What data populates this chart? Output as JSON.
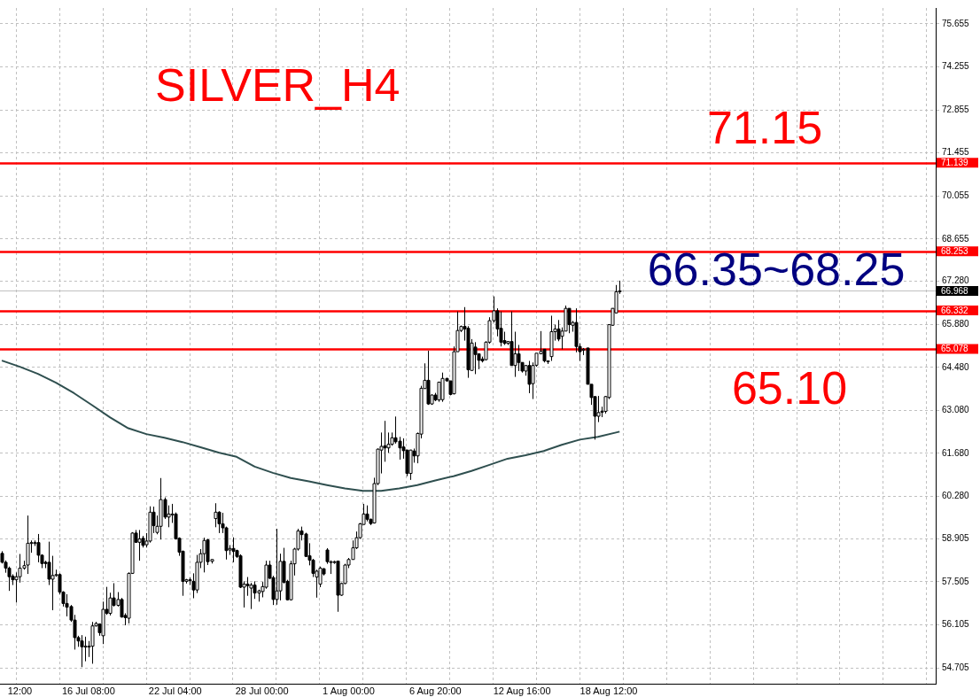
{
  "chart_data": {
    "type": "candlestick",
    "title": "SILVER_H4",
    "color": "#000000",
    "grid": true,
    "annotations": [
      "71.15",
      "66.35~68.25",
      "65.10"
    ],
    "categories": [
      null,
      null,
      null,
      null,
      null,
      "12:00",
      null,
      null,
      null,
      null,
      null,
      null,
      null,
      null,
      null,
      null,
      null,
      null,
      null,
      null,
      null,
      null,
      null,
      null,
      "16 Jul 08:00",
      null,
      null,
      null,
      null,
      null,
      null,
      null,
      null,
      null,
      null,
      null,
      null,
      null,
      null,
      null,
      null,
      null,
      null,
      null,
      null,
      null,
      null,
      null,
      "22 Jul 04:00",
      null,
      null,
      null,
      null,
      null,
      null,
      null,
      null,
      null,
      null,
      null,
      null,
      null,
      null,
      null,
      null,
      null,
      null,
      null,
      null,
      null,
      null,
      null,
      "28 Jul 00:00",
      null,
      null,
      null,
      null,
      null,
      null,
      null,
      null,
      null,
      null,
      null,
      null,
      null,
      null,
      null,
      null,
      null,
      null,
      null,
      null,
      null,
      null,
      null,
      "1 Aug 00:00",
      null,
      null,
      null,
      null,
      null,
      null,
      null,
      null,
      null,
      null,
      null,
      null,
      null,
      null,
      null,
      null,
      null,
      null,
      null,
      null,
      null,
      null,
      null,
      "6 Aug 20:00",
      null,
      null,
      null,
      null,
      null,
      null,
      null,
      null,
      null,
      null,
      null,
      null,
      null,
      null,
      null,
      null,
      null,
      null,
      null,
      null,
      null,
      null,
      null,
      "12 Aug 16:00",
      null,
      null,
      null,
      null,
      null,
      null,
      null,
      null,
      null,
      null,
      null,
      null,
      null,
      null,
      null,
      null,
      null,
      null,
      null,
      null,
      null,
      null,
      null,
      "18 Aug 12:00",
      null,
      null,
      null,
      null,
      null,
      null,
      null,
      null,
      null,
      null,
      null,
      null,
      null,
      null,
      null,
      null,
      null,
      null,
      null,
      null,
      null,
      null,
      null,
      null,
      null,
      null,
      null,
      null,
      null,
      null,
      null,
      null,
      null,
      null,
      null,
      null,
      null,
      null,
      null,
      null,
      null,
      null,
      null,
      null,
      null,
      null,
      null,
      null,
      null,
      null,
      null,
      null,
      null,
      null,
      null,
      null,
      null,
      null,
      null,
      null,
      null,
      null,
      null,
      null,
      null,
      null,
      null,
      null,
      null,
      null,
      null,
      null,
      null,
      null,
      null,
      null,
      null,
      null,
      null,
      null,
      null,
      null,
      null,
      null,
      null,
      null,
      null,
      null,
      null,
      null
    ],
    "colors": [
      "#000000",
      "#000000",
      "#000000",
      "#000000",
      "#ffffff",
      "#ffffff",
      "#ffffff",
      "#ffffff",
      "#ffffff",
      "#ffffff",
      "#000000",
      "#000000",
      "#000000",
      "#000000",
      "#ffffff",
      "#ffffff",
      "#000000",
      "#000000",
      "#000000",
      "#000000",
      "#000000",
      "#000000",
      "#000000",
      "#ffffff",
      "#ffffff",
      "#ffffff",
      "#ffffff",
      "#000000",
      "#ffffff",
      "#000000",
      "#ffffff",
      "#000000",
      "#ffffff",
      "#000000",
      "#000000",
      "#ffffff",
      "#ffffff",
      "#000000",
      "#ffffff",
      "#000000",
      "#ffffff",
      "#ffffff",
      "#000000",
      "#ffffff",
      "#ffffff",
      "#000000",
      "#ffffff",
      "#ffffff",
      "#000000",
      "#000000",
      "#000000",
      "#ffffff",
      "#000000",
      "#000000",
      "#ffffff",
      "#ffffff",
      "#ffffff",
      "#000000",
      "#ffffff",
      "#ffffff",
      "#000000",
      "#000000",
      "#000000",
      "#ffffff",
      "#000000",
      "#000000",
      "#000000",
      "#ffffff",
      "#000000",
      "#ffffff",
      "#000000",
      "#ffffff",
      "#ffffff",
      "#ffffff",
      "#000000",
      "#000000",
      "#ffffff",
      "#ffffff",
      "#000000",
      "#000000",
      "#ffffff",
      "#ffffff",
      "#ffffff",
      "#000000",
      "#000000",
      "#000000",
      "#000000",
      "#ffffff",
      "#ffffff",
      "#000000",
      "#000000",
      "#ffffff",
      "#ffffff",
      "#000000",
      "#ffffff",
      "#ffffff",
      "#ffffff",
      "#ffffff",
      "#ffffff",
      "#ffffff",
      "#ffffff",
      "#000000",
      "#000000",
      "#ffffff",
      "#ffffff",
      "#ffffff",
      "#000000",
      "#ffffff",
      "#ffffff",
      "#000000",
      "#000000",
      "#000000",
      "#000000",
      "#ffffff",
      "#000000",
      "#ffffff",
      "#ffffff",
      "#ffffff",
      "#000000",
      "#ffffff",
      "#000000",
      "#ffffff",
      "#ffffff",
      "#000000",
      "#000000",
      "#ffffff",
      "#ffffff",
      "#ffffff",
      "#000000",
      "#000000",
      "#ffffff",
      "#000000",
      "#000000",
      "#000000",
      "#ffffff",
      "#ffffff",
      "#ffffff",
      "#000000",
      "#000000",
      "#000000",
      "#ffffff",
      "#000000",
      "#ffffff",
      "#000000",
      "#000000",
      "#ffffff",
      "#000000",
      "#ffffff",
      "#ffffff",
      "#ffffff",
      "#000000",
      "#000000",
      "#ffffff",
      "#ffffff",
      "#000000",
      "#ffffff",
      "#ffffff",
      "#000000",
      "#ffffff",
      "#000000",
      "#000000",
      "#ffffff",
      "#000000",
      "#000000",
      "#000000",
      "#ffffff",
      "#ffffff",
      "#ffffff",
      "#ffffff",
      "#ffffff",
      "#ffffff",
      "#ffffff",
      null,
      null,
      null,
      null,
      null,
      null,
      null,
      null,
      null,
      null,
      null,
      null,
      null,
      null,
      null,
      null,
      null,
      null,
      null,
      null,
      null,
      null,
      null,
      null,
      null,
      null,
      null,
      null,
      null,
      null,
      null,
      null,
      null,
      null,
      null,
      null,
      null,
      null,
      null,
      null,
      null,
      null,
      null,
      null,
      null,
      null,
      null,
      null,
      null,
      null,
      null,
      null,
      null,
      null,
      null,
      null,
      null,
      null,
      null,
      null,
      null,
      null,
      null,
      null,
      null,
      null,
      null,
      null,
      null,
      null,
      null,
      null,
      null,
      null,
      null,
      null,
      null,
      null,
      null,
      null,
      null,
      null,
      null,
      null,
      null,
      null,
      null
    ],
    "ohlc": [
      [
        58.43,
        58.5,
        58.1,
        58.14
      ],
      [
        58.14,
        58.2,
        57.8,
        57.95
      ],
      [
        57.95,
        58.0,
        57.21,
        57.67
      ],
      [
        57.69,
        57.75,
        57.4,
        57.57
      ],
      [
        57.57,
        57.81,
        56.83,
        57.67
      ],
      [
        57.67,
        58.41,
        57.48,
        57.95
      ],
      [
        57.95,
        58.19,
        57.9,
        58.03
      ],
      [
        58.05,
        59.66,
        57.76,
        58.76
      ],
      [
        58.76,
        58.85,
        58.45,
        58.78
      ],
      [
        58.78,
        58.85,
        58.67,
        58.78
      ],
      [
        58.78,
        59.06,
        58.14,
        58.37
      ],
      [
        58.37,
        58.4,
        57.95,
        58.1
      ],
      [
        58.14,
        58.19,
        57.95,
        58.1
      ],
      [
        58.14,
        58.81,
        57.4,
        57.59
      ],
      [
        57.59,
        58.35,
        56.58,
        57.71
      ],
      [
        57.71,
        57.9,
        57.67,
        57.74
      ],
      [
        57.74,
        57.78,
        57.1,
        57.17
      ],
      [
        57.17,
        57.2,
        56.7,
        56.8
      ],
      [
        56.8,
        57.1,
        56.38,
        56.68
      ],
      [
        56.7,
        56.75,
        56.2,
        56.26
      ],
      [
        56.26,
        56.43,
        55.3,
        55.69
      ],
      [
        55.69,
        55.75,
        55.39,
        55.58
      ],
      [
        55.58,
        55.77,
        54.73,
        55.39
      ],
      [
        55.39,
        55.72,
        54.92,
        55.41
      ],
      [
        55.41,
        55.58,
        55.06,
        55.41
      ],
      [
        55.41,
        56.2,
        54.84,
        56.07
      ],
      [
        56.07,
        56.2,
        56.05,
        56.15
      ],
      [
        56.13,
        56.15,
        55.75,
        55.85
      ],
      [
        55.75,
        56.86,
        55.48,
        56.61
      ],
      [
        56.61,
        57.34,
        56.43,
        56.48
      ],
      [
        56.48,
        57.15,
        56.41,
        56.98
      ],
      [
        56.98,
        57.46,
        56.7,
        56.74
      ],
      [
        56.74,
        57.17,
        56.7,
        56.93
      ],
      [
        56.93,
        56.98,
        56.34,
        56.36
      ],
      [
        56.41,
        56.48,
        56.09,
        56.34
      ],
      [
        56.32,
        57.81,
        56.15,
        57.78
      ],
      [
        57.78,
        59.12,
        57.76,
        59.09
      ],
      [
        59.09,
        59.19,
        58.77,
        58.79
      ],
      [
        58.79,
        59.19,
        58.19,
        58.9
      ],
      [
        58.92,
        59.0,
        58.62,
        58.69
      ],
      [
        58.71,
        59.09,
        58.62,
        58.83
      ],
      [
        58.83,
        59.96,
        58.78,
        59.77
      ],
      [
        59.77,
        59.95,
        59.09,
        59.33
      ],
      [
        59.11,
        59.66,
        59.05,
        59.31
      ],
      [
        59.31,
        60.88,
        58.88,
        60.18
      ],
      [
        60.18,
        60.25,
        59.55,
        59.61
      ],
      [
        59.61,
        59.99,
        59.28,
        59.71
      ],
      [
        59.71,
        60.04,
        59.42,
        59.71
      ],
      [
        59.71,
        59.76,
        58.88,
        58.9
      ],
      [
        58.92,
        58.95,
        58.35,
        58.47
      ],
      [
        58.5,
        58.52,
        57.05,
        57.52
      ],
      [
        57.52,
        57.6,
        57.45,
        57.57
      ],
      [
        57.57,
        57.64,
        57.4,
        57.55
      ],
      [
        57.52,
        57.78,
        56.97,
        57.24
      ],
      [
        57.24,
        58.38,
        57.14,
        58.14
      ],
      [
        58.14,
        58.57,
        57.95,
        58.42
      ],
      [
        58.42,
        58.94,
        57.81,
        58.85
      ],
      [
        58.87,
        58.9,
        58.05,
        58.16
      ],
      [
        58.17,
        58.23,
        58.1,
        58.23
      ],
      [
        59.56,
        60.06,
        59.28,
        59.77
      ],
      [
        59.77,
        59.8,
        59.09,
        59.39
      ],
      [
        59.39,
        59.75,
        59.09,
        59.26
      ],
      [
        59.26,
        59.3,
        58.23,
        58.52
      ],
      [
        58.54,
        58.7,
        58.38,
        58.59
      ],
      [
        58.59,
        58.95,
        58.14,
        58.5
      ],
      [
        58.52,
        58.55,
        58.28,
        58.33
      ],
      [
        58.35,
        58.4,
        57.3,
        57.33
      ],
      [
        57.33,
        57.52,
        56.67,
        57.43
      ],
      [
        57.43,
        57.66,
        57.05,
        57.38
      ],
      [
        57.3,
        57.47,
        56.62,
        57.4
      ],
      [
        57.4,
        57.52,
        56.95,
        57.14
      ],
      [
        57.14,
        57.25,
        56.86,
        57.21
      ],
      [
        57.19,
        57.5,
        57.0,
        57.35
      ],
      [
        57.33,
        58.19,
        57.28,
        58.05
      ],
      [
        58.05,
        58.19,
        57.6,
        57.62
      ],
      [
        57.64,
        57.7,
        56.75,
        56.93
      ],
      [
        56.93,
        59.23,
        56.76,
        57.21
      ],
      [
        57.21,
        58.42,
        56.9,
        58.17
      ],
      [
        58.17,
        58.61,
        57.45,
        57.49
      ],
      [
        57.52,
        57.57,
        56.9,
        56.92
      ],
      [
        56.92,
        58.19,
        56.9,
        58.09
      ],
      [
        58.09,
        58.61,
        57.71,
        58.57
      ],
      [
        58.57,
        59.23,
        58.52,
        59.16
      ],
      [
        59.16,
        59.3,
        58.85,
        59.04
      ],
      [
        59.06,
        59.1,
        58.33,
        58.33
      ],
      [
        58.35,
        58.76,
        58.04,
        58.21
      ],
      [
        58.21,
        58.25,
        57.66,
        57.78
      ],
      [
        57.66,
        57.9,
        56.99,
        57.85
      ],
      [
        57.43,
        58.0,
        57.33,
        57.95
      ],
      [
        57.93,
        57.95,
        57.71,
        57.76
      ],
      [
        58.54,
        58.6,
        58.09,
        58.16
      ],
      [
        58.16,
        58.2,
        57.76,
        58.16
      ],
      [
        58.16,
        58.19,
        58.09,
        58.16
      ],
      [
        58.18,
        58.19,
        56.53,
        57.07
      ],
      [
        57.07,
        57.48,
        57.05,
        57.45
      ],
      [
        57.45,
        58.09,
        57.43,
        58.05
      ],
      [
        58.05,
        58.28,
        57.95,
        58.23
      ],
      [
        58.23,
        58.85,
        58.23,
        58.61
      ],
      [
        58.61,
        59.14,
        58.57,
        58.94
      ],
      [
        58.94,
        59.42,
        58.9,
        59.39
      ],
      [
        59.37,
        60.04,
        59.37,
        59.71
      ],
      [
        59.71,
        59.99,
        59.47,
        59.54
      ],
      [
        59.54,
        59.56,
        59.35,
        59.4
      ],
      [
        59.42,
        60.89,
        59.4,
        60.7
      ],
      [
        60.7,
        61.84,
        60.65,
        61.82
      ],
      [
        61.79,
        62.36,
        61.03,
        61.91
      ],
      [
        61.93,
        62.74,
        61.41,
        61.86
      ],
      [
        61.86,
        62.36,
        61.7,
        61.98
      ],
      [
        61.98,
        62.36,
        61.93,
        62.19
      ],
      [
        62.19,
        62.88,
        62.0,
        62.06
      ],
      [
        62.08,
        62.22,
        61.48,
        61.86
      ],
      [
        61.89,
        62.17,
        61.51,
        61.77
      ],
      [
        61.79,
        61.8,
        60.94,
        61.03
      ],
      [
        61.03,
        61.8,
        60.82,
        61.79
      ],
      [
        61.76,
        61.84,
        61.38,
        61.6
      ],
      [
        61.6,
        62.36,
        61.36,
        62.33
      ],
      [
        62.31,
        63.88,
        62.17,
        63.8
      ],
      [
        63.79,
        64.61,
        63.79,
        64.06
      ],
      [
        64.06,
        65.02,
        63.26,
        63.29
      ],
      [
        63.29,
        63.6,
        63.26,
        63.58
      ],
      [
        63.58,
        63.65,
        63.38,
        63.42
      ],
      [
        63.42,
        64.0,
        63.36,
        64.0
      ],
      [
        63.43,
        64.31,
        63.36,
        64.12
      ],
      [
        64.12,
        64.14,
        64.02,
        64.04
      ],
      [
        64.04,
        64.04,
        63.57,
        63.6
      ],
      [
        63.62,
        65.16,
        63.6,
        64.99
      ],
      [
        64.99,
        66.3,
        64.99,
        65.68
      ],
      [
        65.68,
        65.84,
        65.63,
        65.81
      ],
      [
        65.81,
        66.44,
        65.35,
        65.73
      ],
      [
        65.75,
        65.82,
        64.14,
        64.4
      ],
      [
        64.38,
        65.4,
        64.38,
        65.27
      ],
      [
        65.14,
        65.3,
        64.26,
        64.9
      ],
      [
        64.92,
        64.92,
        64.42,
        64.71
      ],
      [
        64.75,
        64.83,
        64.64,
        64.69
      ],
      [
        64.73,
        65.33,
        64.71,
        65.3
      ],
      [
        65.3,
        66.11,
        65.25,
        66.0
      ],
      [
        66.0,
        66.79,
        65.94,
        66.32
      ],
      [
        66.32,
        66.4,
        65.49,
        65.73
      ],
      [
        65.75,
        66.3,
        65.16,
        65.3
      ],
      [
        65.35,
        65.64,
        65.21,
        65.26
      ],
      [
        65.26,
        65.32,
        65.21,
        65.32
      ],
      [
        65.32,
        66.3,
        64.54,
        64.54
      ],
      [
        64.54,
        65.64,
        64.17,
        64.92
      ],
      [
        64.92,
        65.21,
        64.36,
        64.64
      ],
      [
        64.64,
        64.64,
        64.31,
        64.36
      ],
      [
        64.36,
        64.54,
        64.21,
        64.54
      ],
      [
        64.54,
        64.69,
        63.64,
        63.93
      ],
      [
        63.95,
        64.64,
        63.45,
        64.54
      ],
      [
        64.55,
        64.94,
        64.5,
        64.94
      ],
      [
        64.92,
        65.66,
        64.92,
        65.0
      ],
      [
        65.07,
        65.07,
        64.64,
        64.69
      ],
      [
        64.69,
        64.69,
        64.59,
        64.67
      ],
      [
        64.83,
        66.16,
        64.69,
        65.64
      ],
      [
        65.64,
        65.87,
        65.35,
        65.73
      ],
      [
        65.73,
        66.02,
        65.33,
        65.4
      ],
      [
        65.49,
        65.78,
        65.07,
        65.66
      ],
      [
        65.66,
        66.49,
        65.66,
        66.4
      ],
      [
        66.4,
        66.4,
        65.59,
        65.87
      ],
      [
        65.85,
        65.99,
        65.64,
        65.94
      ],
      [
        65.94,
        66.4,
        64.97,
        65.16
      ],
      [
        65.16,
        65.26,
        64.69,
        64.99
      ],
      [
        65.07,
        65.11,
        64.88,
        65.07
      ],
      [
        65.11,
        65.11,
        63.93,
        63.93
      ],
      [
        63.93,
        63.93,
        63.26,
        63.5
      ],
      [
        63.53,
        63.53,
        62.13,
        62.89
      ],
      [
        62.89,
        63.55,
        62.7,
        63.01
      ],
      [
        63.05,
        63.2,
        62.86,
        63.05
      ],
      [
        63.05,
        63.55,
        62.98,
        63.53
      ],
      [
        63.5,
        65.87,
        63.45,
        65.87
      ],
      [
        65.85,
        66.4,
        65.83,
        66.4
      ],
      [
        66.25,
        67.16,
        66.25,
        66.94
      ],
      [
        66.94,
        67.3,
        66.87,
        66.97
      ],
      null,
      null,
      null,
      null,
      null,
      null,
      null,
      null,
      null,
      null,
      null,
      null,
      null,
      null,
      null,
      null,
      null,
      null,
      null,
      null,
      null,
      null,
      null,
      null,
      null,
      null,
      null,
      null,
      null,
      null,
      null,
      null,
      null,
      null,
      null,
      null,
      null,
      null,
      null,
      null,
      null,
      null,
      null,
      null,
      null,
      null,
      null,
      null,
      null,
      null,
      null,
      null,
      null,
      null,
      null,
      null,
      null,
      null,
      null,
      null,
      null,
      null,
      null,
      null,
      null,
      null,
      null,
      null,
      null,
      null,
      null,
      null,
      null,
      null,
      null,
      null,
      null,
      null,
      null,
      null,
      null,
      null,
      null,
      null,
      null,
      null,
      null
    ],
    "series": [
      {
        "type": "line",
        "color": "#2f4f4f",
        "values": [
          64.7,
          null,
          null,
          null,
          null,
          64.5,
          null,
          null,
          null,
          null,
          64.27,
          null,
          null,
          null,
          null,
          63.98,
          null,
          null,
          null,
          null,
          63.64,
          null,
          null,
          null,
          null,
          63.25,
          null,
          null,
          null,
          null,
          62.85,
          null,
          null,
          null,
          null,
          62.5,
          null,
          null,
          null,
          null,
          62.31,
          null,
          null,
          null,
          null,
          62.19,
          null,
          null,
          null,
          null,
          62.05,
          null,
          null,
          null,
          null,
          61.88,
          null,
          null,
          null,
          null,
          61.71,
          null,
          null,
          null,
          null,
          61.57,
          null,
          null,
          null,
          null,
          61.25,
          null,
          null,
          null,
          null,
          61.05,
          null,
          null,
          null,
          null,
          60.88,
          null,
          null,
          null,
          null,
          60.77,
          null,
          null,
          null,
          null,
          60.65,
          null,
          null,
          null,
          null,
          60.54,
          null,
          null,
          null,
          null,
          60.46,
          null,
          null,
          null,
          null,
          60.46,
          null,
          null,
          null,
          null,
          60.54,
          null,
          null,
          null,
          null,
          60.65,
          null,
          null,
          null,
          null,
          60.8,
          null,
          null,
          null,
          null,
          60.94,
          null,
          null,
          null,
          null,
          61.11,
          null,
          null,
          null,
          null,
          61.31,
          null,
          null,
          null,
          null,
          61.51,
          null,
          null,
          null,
          null,
          61.62,
          null,
          null,
          null,
          null,
          61.76,
          null,
          null,
          null,
          null,
          61.96,
          null,
          null,
          null,
          null,
          62.13,
          null,
          null,
          null,
          null,
          62.22,
          null,
          null,
          null,
          null,
          62.36,
          62.39,
          null,
          null,
          null,
          null,
          null,
          null,
          null,
          null,
          null,
          null,
          null,
          null,
          null,
          null,
          null,
          null,
          null,
          null,
          null,
          null,
          null,
          null,
          null,
          null,
          null,
          null,
          null,
          null,
          null,
          null,
          null,
          null,
          null,
          null,
          null,
          null,
          null,
          null,
          null,
          null,
          null,
          null,
          null,
          null,
          null,
          null,
          null,
          null,
          null,
          null,
          null,
          null,
          null,
          null,
          null,
          null,
          null,
          null,
          null,
          null,
          null,
          null,
          null,
          null,
          null,
          null,
          null,
          null,
          null,
          null,
          null,
          null,
          null,
          null,
          null,
          null,
          null,
          null,
          null,
          null,
          null,
          null,
          null,
          null,
          null,
          null,
          null
        ]
      }
    ],
    "ylim": [
      54.19,
      76.17
    ],
    "yticks": [
      54.705,
      56.105,
      57.505,
      58.905,
      {
        "value": 60.28,
        "label": "60.280"
      },
      {
        "value": 61.68,
        "label": "61.680"
      },
      {
        "value": 63.08,
        "label": "63.080"
      },
      {
        "value": 64.48,
        "label": "64.480"
      },
      {
        "value": 65.88,
        "label": "65.880"
      },
      {
        "value": 67.28,
        "label": "67.280"
      },
      68.655,
      70.055,
      71.455,
      72.855,
      74.255,
      75.655
    ],
    "ref_lines": [
      {
        "axis": "y",
        "value": 71.139,
        "label": "71.139",
        "color": "#ff0000"
      },
      {
        "axis": "y",
        "value": 68.253,
        "label": "68.253",
        "color": "#ff0000"
      },
      {
        "axis": "y",
        "value": 66.968,
        "label": "66.968",
        "color": "#c0c0c0"
      },
      {
        "axis": "y",
        "value": 66.332,
        "label": "66.332",
        "color": "#ff0000"
      },
      {
        "axis": "y",
        "value": 65.078,
        "label": "65.078",
        "color": "#ff0000"
      }
    ]
  }
}
